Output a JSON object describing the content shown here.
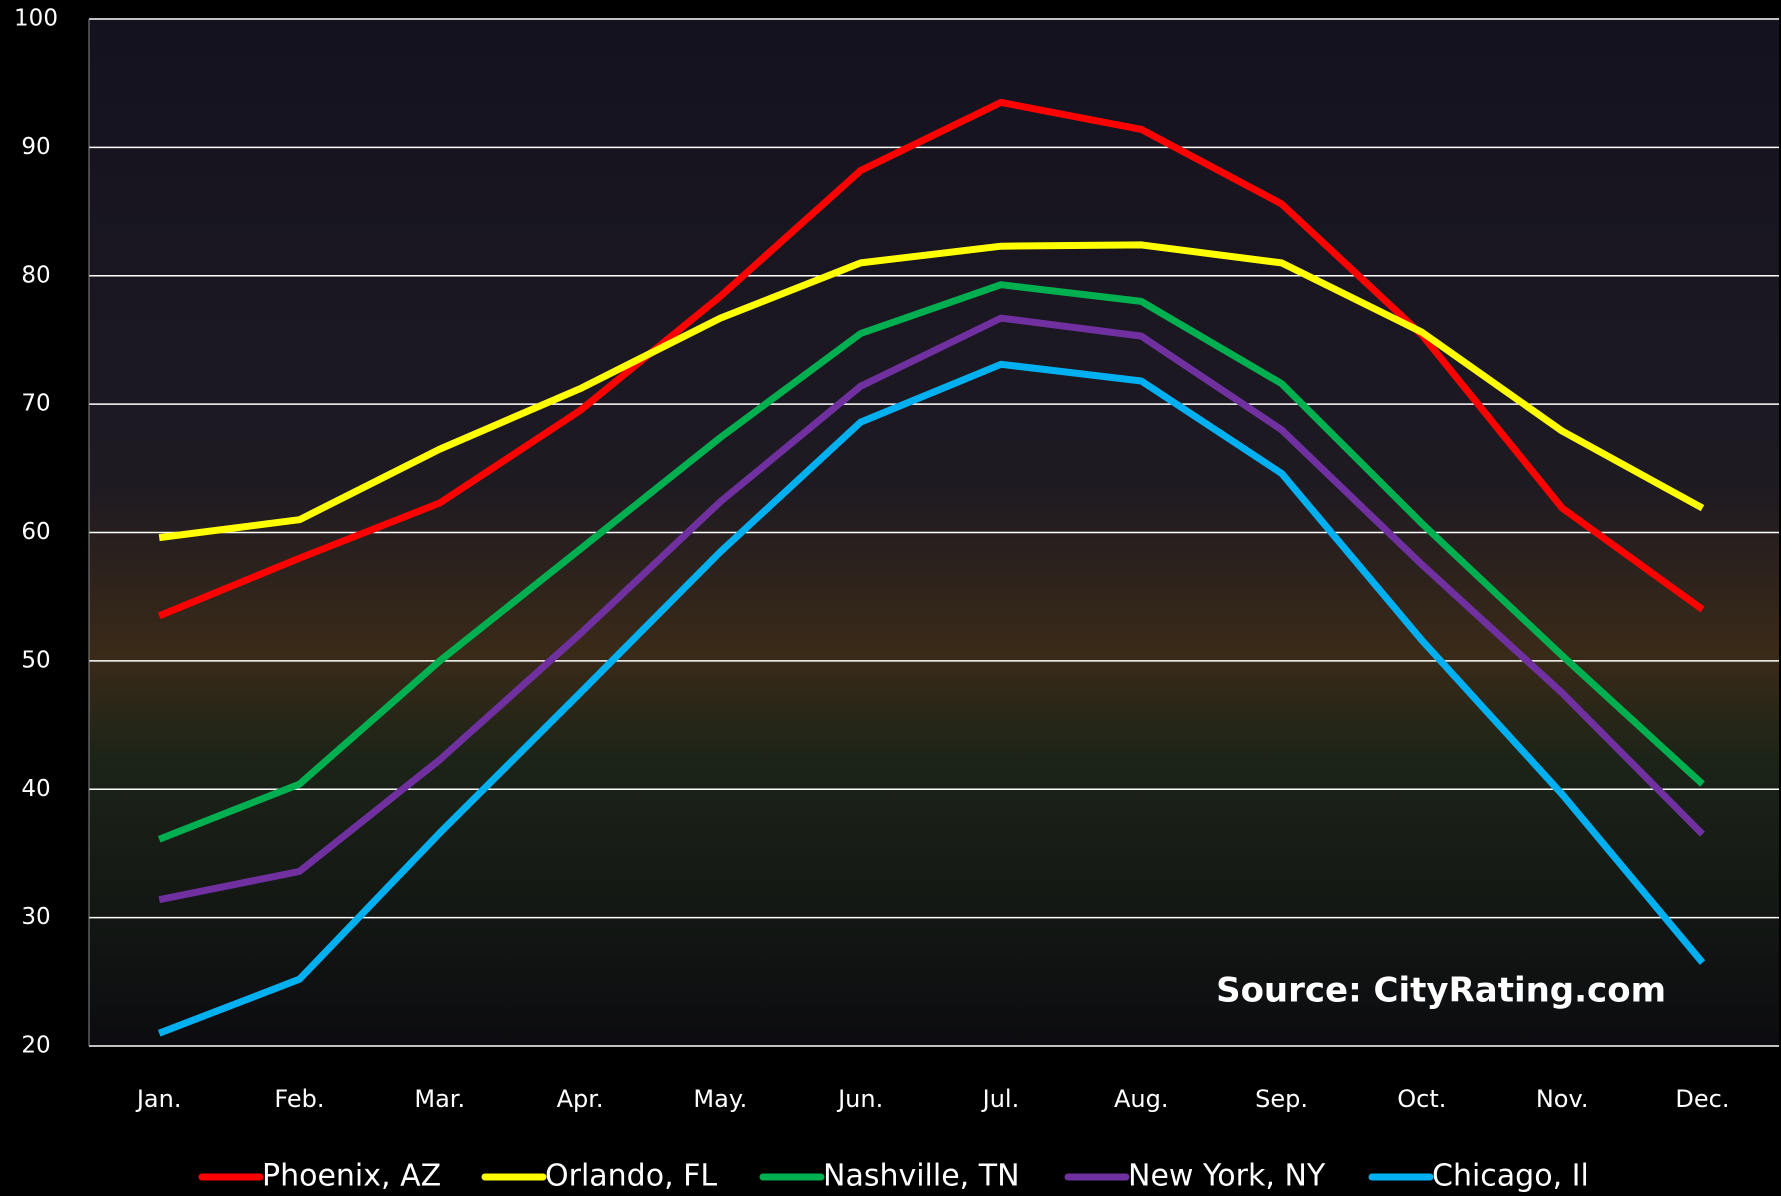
{
  "chart_data": {
    "type": "line",
    "categories": [
      "Jan.",
      "Feb.",
      "Mar.",
      "Apr.",
      "May.",
      "Jun.",
      "Jul.",
      "Aug.",
      "Sep.",
      "Oct.",
      "Nov.",
      "Dec."
    ],
    "series": [
      {
        "name": "Phoenix, AZ",
        "color": "#ff0000",
        "values": [
          53.5,
          58,
          62.3,
          69.5,
          78.4,
          88.2,
          93.5,
          91.4,
          85.6,
          75.4,
          61.9,
          54
        ]
      },
      {
        "name": "Orlando, FL",
        "color": "#ffff00",
        "values": [
          59.6,
          61,
          66.5,
          71.2,
          76.7,
          81,
          82.3,
          82.4,
          81,
          75.6,
          67.9,
          61.9
        ]
      },
      {
        "name": "Nashville, TN",
        "color": "#00b050",
        "values": [
          36.1,
          40.4,
          50,
          58.7,
          67.4,
          75.5,
          79.3,
          78,
          71.6,
          60.7,
          50.4,
          40.4
        ]
      },
      {
        "name": "New York, NY",
        "color": "#7030a0",
        "values": [
          31.4,
          33.6,
          42.3,
          52.1,
          62.4,
          71.4,
          76.7,
          75.3,
          68,
          57.5,
          47.5,
          36.5
        ]
      },
      {
        "name": "Chicago, Il",
        "color": "#00b0f0",
        "values": [
          21,
          25.2,
          36.6,
          47.5,
          58.5,
          68.6,
          73.1,
          71.8,
          64.6,
          51.6,
          39.6,
          26.5
        ]
      }
    ],
    "ylim": [
      20,
      100
    ],
    "yticks": [
      20,
      30,
      40,
      50,
      60,
      70,
      80,
      90,
      100
    ],
    "grid": true,
    "annotation": "Source: CityRating.com",
    "legend": "bottom"
  }
}
